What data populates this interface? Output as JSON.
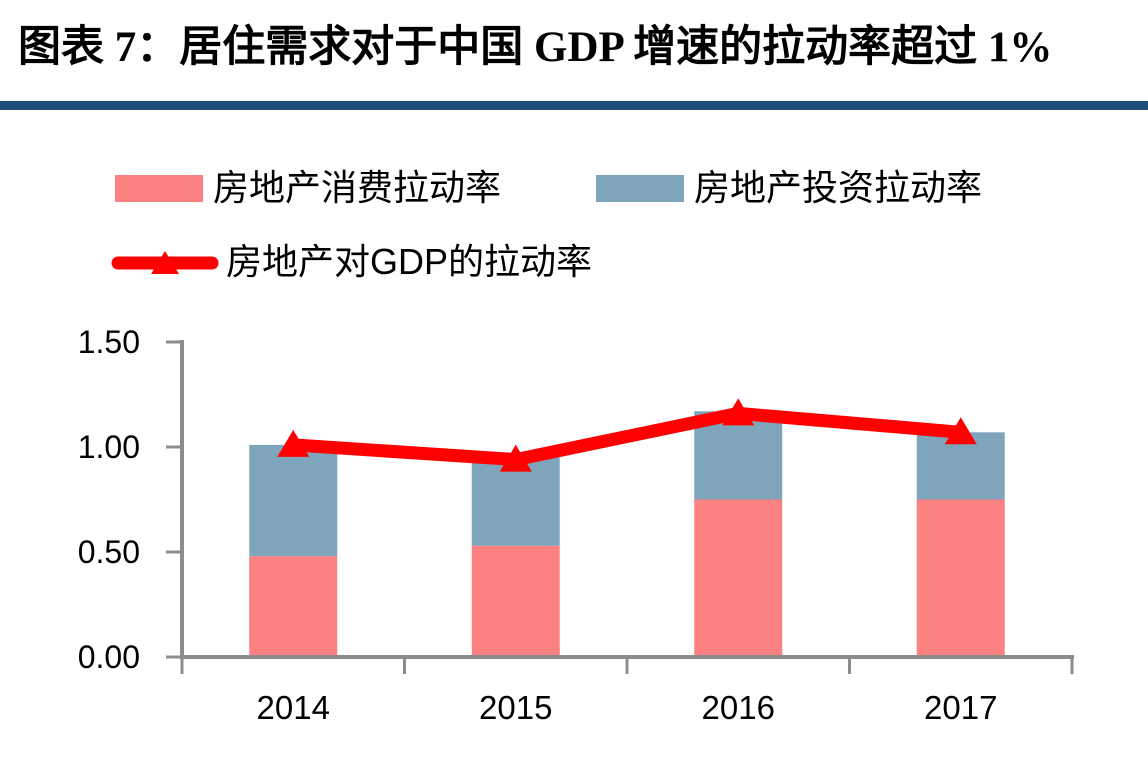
{
  "title": "图表 7：居住需求对于中国 GDP 增速的拉动率超过 1%",
  "colors": {
    "divider": "#1F4E79",
    "axis": "#8C8C8C",
    "text": "#000000",
    "background": "#FFFFFF"
  },
  "chart_data": {
    "type": "bar",
    "subtype": "stacked-bars-with-line-overlay",
    "title": "居住需求对于中国GDP增速的拉动率超过1%",
    "categories": [
      "2014",
      "2015",
      "2016",
      "2017"
    ],
    "series": [
      {
        "name": "房地产消费拉动率",
        "type": "bar",
        "color": "#FB8280",
        "values": [
          0.48,
          0.53,
          0.75,
          0.75
        ]
      },
      {
        "name": "房地产投资拉动率",
        "type": "bar",
        "color": "#7FA5BD",
        "values": [
          0.53,
          0.42,
          0.42,
          0.32
        ]
      },
      {
        "name": "房地产对GDP的拉动率",
        "type": "line",
        "color": "#FF0000",
        "marker": "triangle-up",
        "values": [
          1.01,
          0.94,
          1.16,
          1.07
        ]
      }
    ],
    "stacked": true,
    "xlabel": "",
    "ylabel": "",
    "ylim": [
      0,
      1.5
    ],
    "yticks": [
      {
        "value": 0.0,
        "label": "0.00"
      },
      {
        "value": 0.5,
        "label": "0.50"
      },
      {
        "value": 1.0,
        "label": "1.00"
      },
      {
        "value": 1.5,
        "label": "1.50"
      }
    ],
    "grid": false,
    "legend_position": "top-left"
  }
}
